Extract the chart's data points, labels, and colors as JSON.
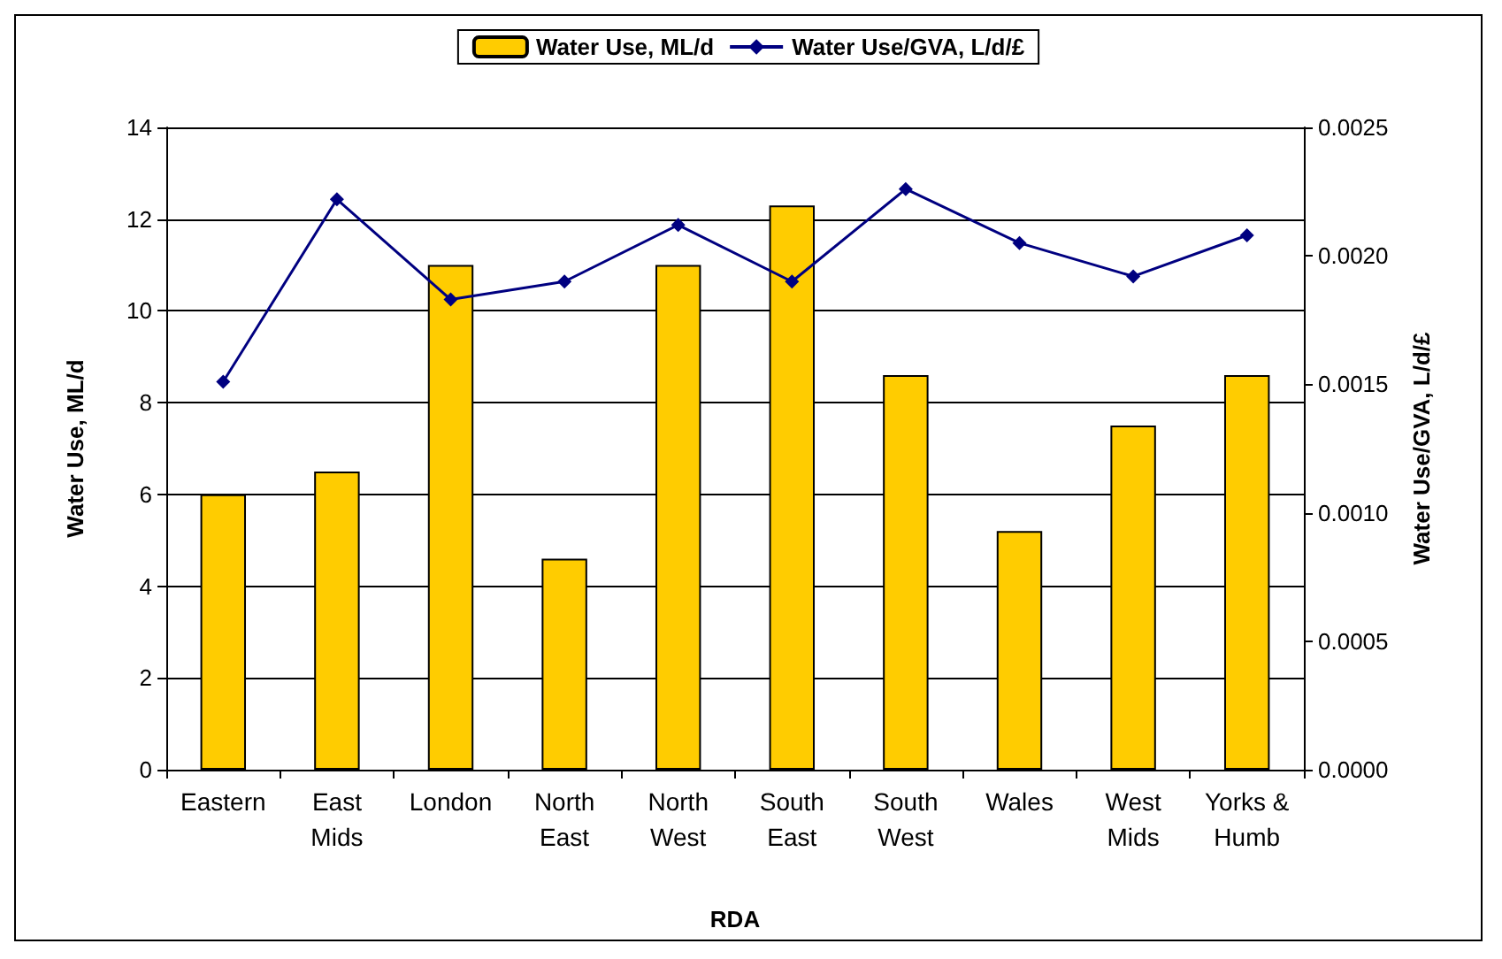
{
  "chart_data": {
    "type": "bar",
    "xlabel": "RDA",
    "ylabel": "Water Use, ML/d",
    "y2label": "Water Use/GVA, L/d/£",
    "categories": [
      "Eastern",
      "East\nMids",
      "London",
      "North\nEast",
      "North\nWest",
      "South\nEast",
      "South\nWest",
      "Wales",
      "West\nMids",
      "Yorks &\nHumb"
    ],
    "series": [
      {
        "name": "Water Use, ML/d",
        "color": "#ffcc00",
        "values": [
          6.0,
          6.5,
          11.0,
          4.6,
          11.0,
          12.3,
          8.6,
          5.2,
          7.5,
          8.6
        ]
      },
      {
        "name": "Water Use/GVA, L/d/£",
        "type": "line",
        "axis": "y2",
        "color": "#000080",
        "marker": "diamond",
        "values": [
          0.00151,
          0.00222,
          0.00183,
          0.0019,
          0.00212,
          0.0019,
          0.00226,
          0.00205,
          0.00192,
          0.00208
        ]
      }
    ],
    "ylim": [
      0,
      14
    ],
    "yticks": [
      0,
      2,
      4,
      6,
      8,
      10,
      12,
      14
    ],
    "y2lim": [
      0,
      0.0025
    ],
    "y2ticks": [
      {
        "value": 0,
        "label": "0.0000"
      },
      {
        "value": 0.0005,
        "label": "0.0005"
      },
      {
        "value": 0.001,
        "label": "0.0010"
      },
      {
        "value": 0.0015,
        "label": "0.0015"
      },
      {
        "value": 0.002,
        "label": "0.0020"
      },
      {
        "value": 0.0025,
        "label": "0.0025"
      }
    ],
    "grid": "y",
    "legend": "top"
  }
}
